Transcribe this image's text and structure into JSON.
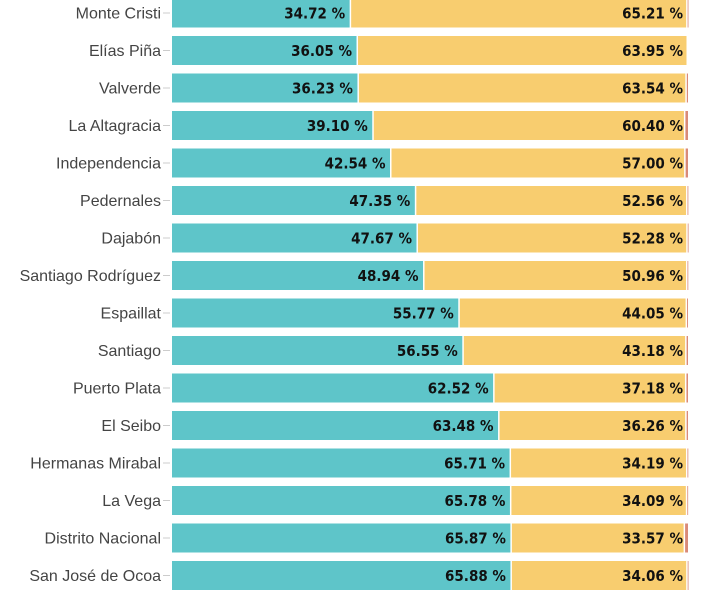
{
  "chart_data": {
    "type": "bar",
    "orientation": "horizontal",
    "stacked": true,
    "percent_stacked": true,
    "xlim": [
      0,
      100
    ],
    "grid": false,
    "categories": [
      "Monte Cristi",
      "Elías Piña",
      "Valverde",
      "La Altagracia",
      "Independencia",
      "Pedernales",
      "Dajabón",
      "Santiago Rodríguez",
      "Espaillat",
      "Santiago",
      "Puerto Plata",
      "El Seibo",
      "Hermanas Mirabal",
      "La Vega",
      "Distrito Nacional",
      "San José de Ocoa"
    ],
    "series": [
      {
        "color": "#5ec5c9",
        "values": [
          34.72,
          36.05,
          36.23,
          39.1,
          42.54,
          47.35,
          47.67,
          48.94,
          55.77,
          56.55,
          62.52,
          63.48,
          65.71,
          65.78,
          65.87,
          65.88
        ]
      },
      {
        "color": "#f8cd6f",
        "values": [
          65.21,
          63.95,
          63.54,
          60.4,
          57.0,
          52.56,
          52.28,
          50.96,
          44.05,
          43.18,
          37.18,
          36.26,
          34.19,
          34.09,
          33.57,
          34.06
        ]
      },
      {
        "color": "#d98a78",
        "values": [
          0.07,
          0,
          0.23,
          0.5,
          0.46,
          0.09,
          0.05,
          0.1,
          0.18,
          0.27,
          0.3,
          0.26,
          0.1,
          0.13,
          0.56,
          0.06
        ]
      }
    ],
    "labels_series1": [
      "34.72 %",
      "36.05 %",
      "36.23 %",
      "39.10 %",
      "42.54 %",
      "47.35 %",
      "47.67 %",
      "48.94 %",
      "55.77 %",
      "56.55 %",
      "62.52 %",
      "63.48 %",
      "65.71 %",
      "65.78 %",
      "65.87 %",
      "65.88 %"
    ],
    "labels_series2": [
      "65.21 %",
      "63.95 %",
      "63.54 %",
      "60.40 %",
      "57.00 %",
      "52.56 %",
      "52.28 %",
      "50.96 %",
      "44.05 %",
      "43.18 %",
      "37.18 %",
      "36.26 %",
      "34.19 %",
      "34.09 %",
      "33.57 %",
      "34.06 %"
    ]
  }
}
